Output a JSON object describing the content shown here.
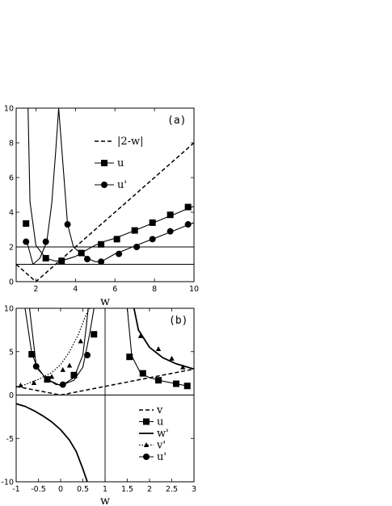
{
  "chart_data": [
    {
      "type": "line",
      "panel_label": "(a)",
      "xlabel": "w",
      "ylabel": "",
      "xlim": [
        1,
        10
      ],
      "ylim": [
        0,
        10
      ],
      "xticks": [
        "2",
        "4",
        "6",
        "8",
        "10"
      ],
      "yticks": [
        "0",
        "2",
        "4",
        "6",
        "8",
        "10"
      ],
      "legend_position": "upper-middle",
      "series": [
        {
          "name": "|2-w|",
          "style": "dashed",
          "marker": "none",
          "x": [
            1,
            2,
            10
          ],
          "y": [
            1,
            0,
            8
          ]
        },
        {
          "name": "u",
          "style": "solid",
          "marker": "square",
          "x": [
            1.6,
            1.7,
            2.0,
            2.5,
            3.0,
            3.3,
            4.0,
            4.3,
            4.6,
            5.0,
            5.4,
            6.0,
            6.5,
            7.0,
            7.5,
            8.0,
            8.5,
            9.0,
            9.5,
            10.0
          ],
          "y": [
            10,
            4.6,
            2.1,
            1.35,
            1.18,
            1.2,
            1.45,
            1.65,
            1.85,
            2.1,
            2.3,
            2.5,
            2.72,
            2.95,
            3.18,
            3.42,
            3.65,
            3.88,
            4.12,
            4.35
          ]
        },
        {
          "name": "u'",
          "style": "solid",
          "marker": "circle",
          "x": [
            1.55,
            1.85,
            2.2,
            2.55,
            2.8,
            3.0,
            3.15,
            3.6,
            3.9,
            4.3,
            4.7,
            5.0,
            5.3,
            6.0,
            6.5,
            7.0,
            7.5,
            8.0,
            8.5,
            9.0,
            9.5,
            10.0
          ],
          "y": [
            2.3,
            1.0,
            1.35,
            2.3,
            4.5,
            7.5,
            10,
            3.3,
            2.0,
            1.6,
            1.3,
            1.15,
            1.15,
            1.6,
            1.82,
            2.05,
            2.28,
            2.5,
            2.72,
            2.95,
            3.18,
            3.4
          ]
        },
        {
          "name": "",
          "style": "thin",
          "marker": "none",
          "x": [
            1,
            10
          ],
          "y": [
            2,
            2
          ]
        },
        {
          "name": "",
          "style": "thin",
          "marker": "none",
          "x": [
            1,
            10
          ],
          "y": [
            1,
            1
          ]
        }
      ],
      "markers": {
        "u": {
          "x": [
            1.5,
            2.5,
            3.3,
            4.3,
            5.3,
            6.1,
            7.0,
            7.9,
            8.8,
            9.7
          ],
          "y": [
            3.35,
            1.35,
            1.2,
            1.65,
            2.15,
            2.45,
            2.95,
            3.4,
            3.85,
            4.3
          ]
        },
        "u'": {
          "x": [
            1.5,
            2.5,
            3.6,
            4.6,
            5.3,
            6.2,
            7.1,
            7.9,
            8.8,
            9.7
          ],
          "y": [
            2.3,
            2.3,
            3.3,
            1.3,
            1.15,
            1.6,
            2.0,
            2.45,
            2.9,
            3.3
          ]
        }
      }
    },
    {
      "type": "line",
      "panel_label": "(b)",
      "xlabel": "w",
      "ylabel": "",
      "xlim": [
        -1,
        3
      ],
      "ylim": [
        -10,
        10
      ],
      "xticks": [
        "-1",
        "-0.5",
        "0",
        "0.5",
        "1",
        "1.5",
        "2",
        "2.5",
        "3"
      ],
      "yticks": [
        "-10",
        "-5",
        "0",
        "5",
        "10"
      ],
      "legend_position": "lower-right",
      "series": [
        {
          "name": "v",
          "style": "dashed",
          "marker": "none",
          "x": [
            -1,
            0,
            3
          ],
          "y": [
            1,
            0,
            3
          ]
        },
        {
          "name": "u",
          "style": "solid",
          "marker": "square",
          "x": [
            -0.8,
            -0.65,
            -0.5,
            -0.3,
            0.0,
            0.3,
            0.5,
            0.65,
            0.75,
            1.5,
            1.6,
            1.8,
            2.0,
            2.3,
            2.6,
            2.9
          ],
          "y": [
            10,
            4.8,
            2.9,
            1.8,
            1.1,
            1.7,
            3.2,
            7.0,
            10,
            10,
            4.5,
            2.5,
            2.0,
            1.6,
            1.3,
            1.0
          ]
        },
        {
          "name": "w'",
          "style": "bold",
          "marker": "none",
          "x": [
            -1,
            -0.8,
            -0.6,
            -0.4,
            -0.2,
            0.0,
            0.2,
            0.35,
            0.5,
            0.6
          ],
          "y": [
            -1.0,
            -1.3,
            -1.8,
            -2.4,
            -3.1,
            -4.0,
            -5.2,
            -6.5,
            -8.5,
            -10
          ]
        },
        {
          "name": "v'",
          "style": "dotted",
          "marker": "triangle",
          "x": [
            -1,
            -0.8,
            -0.5,
            -0.2,
            0.0,
            0.2,
            0.4,
            0.55,
            0.65
          ],
          "y": [
            0.9,
            1.2,
            1.8,
            2.6,
            3.5,
            5.0,
            7.0,
            9.0,
            10
          ]
        },
        {
          "name": "u'",
          "style": "solid",
          "marker": "circle",
          "x": [
            -0.7,
            -0.55,
            -0.35,
            -0.1,
            0.05,
            0.3,
            0.5,
            0.58,
            0.62
          ],
          "y": [
            10,
            3.4,
            2.0,
            1.2,
            1.2,
            2.0,
            4.6,
            8.0,
            10
          ]
        },
        {
          "name": "",
          "style": "thin",
          "marker": "none",
          "x": [
            -1,
            3
          ],
          "y": [
            0,
            0
          ]
        },
        {
          "name": "",
          "style": "thin",
          "marker": "none",
          "x": [
            1,
            1
          ],
          "y": [
            -10,
            10
          ]
        },
        {
          "name": "",
          "style": "bold",
          "marker": "none",
          "x": [
            1.65,
            1.75,
            2.0,
            2.3,
            2.6,
            3.0
          ],
          "y": [
            10,
            7.5,
            5.5,
            4.3,
            3.6,
            3.0
          ]
        }
      ],
      "markers": {
        "u": {
          "x": [
            -0.65,
            -0.3,
            0.3,
            0.75,
            1.55,
            1.85,
            2.2,
            2.6,
            2.85
          ],
          "y": [
            4.7,
            1.8,
            2.3,
            7.0,
            4.4,
            2.5,
            1.7,
            1.3,
            1.05
          ]
        },
        "v'": {
          "x": [
            -0.9,
            -0.6,
            -0.2,
            0.05,
            0.2,
            0.45,
            1.8,
            2.2,
            2.5,
            2.75
          ],
          "y": [
            1.1,
            1.4,
            2.1,
            2.9,
            3.4,
            6.2,
            6.8,
            5.3,
            4.2,
            3.2
          ]
        },
        "u'": {
          "x": [
            -0.55,
            0.05,
            0.6
          ],
          "y": [
            3.3,
            1.2,
            4.6
          ]
        }
      }
    }
  ]
}
